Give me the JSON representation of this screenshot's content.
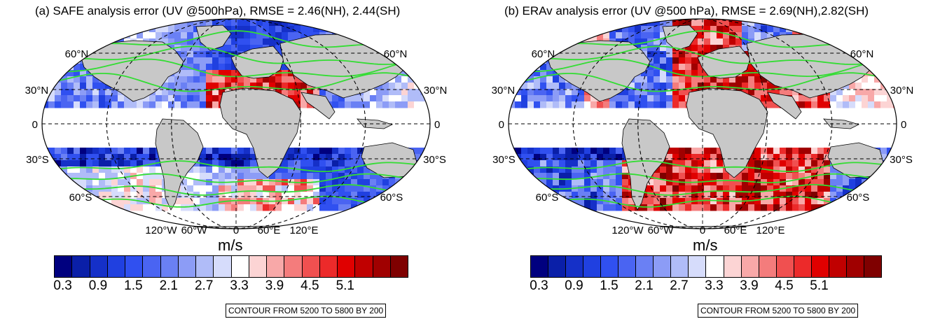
{
  "panels": [
    {
      "id": "a",
      "title": "(a) SAFE analysis error (UV @500hPa), RMSE = 2.46(NH), 2.44(SH)",
      "units": "m/s",
      "contour_note": "CONTOUR FROM 5200 TO 5800 BY 200",
      "lat_labels_left": [
        "60°N",
        "30°N",
        "0",
        "30°S",
        "60°S"
      ],
      "lat_labels_right": [
        "60°N",
        "30°N",
        "0",
        "30°S",
        "60°S"
      ],
      "lon_labels": [
        "120°W",
        "60°W",
        "0",
        "60°E",
        "120°E"
      ]
    },
    {
      "id": "b",
      "title": "(b) ERAv analysis error (UV @500 hPa), RMSE = 2.69(NH),2.82(SH)",
      "units": "m/s",
      "contour_note": "CONTOUR FROM 5200 TO 5800 BY 200",
      "lat_labels_left": [
        "60°N",
        "30°N",
        "0",
        "30°S",
        "60°S"
      ],
      "lat_labels_right": [
        "60°N",
        "30°N",
        "0",
        "30°S",
        "60°S"
      ],
      "lon_labels": [
        "120°W",
        "60°W",
        "0",
        "60°E",
        "120°E"
      ]
    }
  ],
  "colorbar": {
    "tick_labels": [
      "0.3",
      "0.9",
      "1.5",
      "2.1",
      "2.7",
      "3.3",
      "3.9",
      "4.5",
      "5.1"
    ],
    "colors": [
      "#00007f",
      "#0a1fa8",
      "#1530c8",
      "#2040e0",
      "#3050f0",
      "#4a64f2",
      "#6a80f4",
      "#8c9cf6",
      "#b0bcf8",
      "#d6dcfb",
      "#ffffff",
      "#fcd4d4",
      "#f8a8a8",
      "#f47c7c",
      "#f05050",
      "#ec2a2a",
      "#e00000",
      "#c00000",
      "#a00000",
      "#7f0000"
    ]
  },
  "colors": {
    "land": "#c8c8c8",
    "contour": "#33dd33"
  }
}
